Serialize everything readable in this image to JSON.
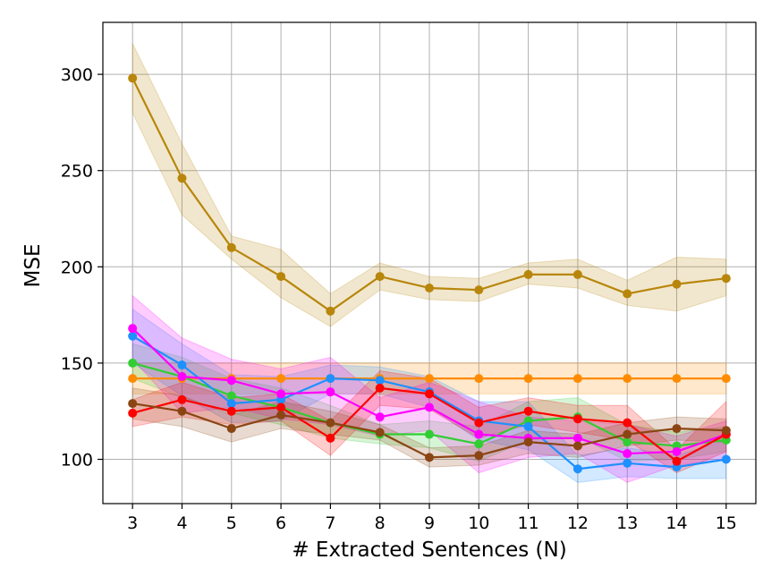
{
  "chart_data": {
    "type": "line",
    "title": "",
    "xlabel": "# Extracted Sentences (N)",
    "ylabel": "MSE",
    "x": [
      3,
      4,
      5,
      6,
      7,
      8,
      9,
      10,
      11,
      12,
      13,
      14,
      15
    ],
    "xlim": [
      2.4,
      15.6
    ],
    "ylim": [
      77,
      327
    ],
    "xticks": [
      3,
      4,
      5,
      6,
      7,
      8,
      9,
      10,
      11,
      12,
      13,
      14,
      15
    ],
    "yticks": [
      100,
      150,
      200,
      250,
      300
    ],
    "grid": true,
    "series": [
      {
        "name": "gold",
        "color": "#b8860b",
        "values": [
          298,
          246,
          210,
          195,
          177,
          195,
          189,
          188,
          196,
          196,
          186,
          191,
          194
        ],
        "lower": [
          280,
          227,
          204,
          184,
          169,
          188,
          183,
          182,
          191,
          189,
          180,
          177,
          185
        ],
        "upper": [
          316,
          264,
          216,
          209,
          186,
          202,
          195,
          194,
          202,
          204,
          193,
          205,
          204
        ]
      },
      {
        "name": "orange",
        "color": "#ff8c00",
        "values": [
          142,
          142,
          142,
          142,
          142,
          142,
          142,
          142,
          142,
          142,
          142,
          142,
          142
        ],
        "lower": [
          134,
          134,
          134,
          134,
          134,
          134,
          134,
          134,
          134,
          134,
          134,
          134,
          134
        ],
        "upper": [
          150,
          150,
          150,
          150,
          150,
          150,
          150,
          150,
          150,
          150,
          150,
          150,
          150
        ]
      },
      {
        "name": "green",
        "color": "#32cd32",
        "values": [
          150,
          143,
          133,
          127,
          119,
          113,
          113,
          108,
          120,
          122,
          109,
          107,
          110
        ],
        "lower": [
          142,
          132,
          124,
          118,
          111,
          108,
          106,
          99,
          110,
          112,
          99,
          100,
          104
        ],
        "upper": [
          160,
          153,
          142,
          137,
          128,
          118,
          120,
          117,
          130,
          132,
          118,
          114,
          117
        ]
      },
      {
        "name": "blue",
        "color": "#1e90ff",
        "values": [
          164,
          149,
          129,
          131,
          142,
          141,
          135,
          120,
          117,
          95,
          98,
          96,
          100
        ],
        "lower": [
          150,
          133,
          119,
          120,
          134,
          134,
          127,
          110,
          105,
          88,
          91,
          90,
          90
        ],
        "upper": [
          178,
          160,
          144,
          143,
          149,
          148,
          143,
          130,
          130,
          102,
          106,
          102,
          110
        ]
      },
      {
        "name": "magenta",
        "color": "#ff00ff",
        "values": [
          168,
          143,
          141,
          134,
          135,
          122,
          127,
          113,
          111,
          111,
          103,
          104,
          113
        ],
        "lower": [
          152,
          124,
          127,
          121,
          118,
          112,
          115,
          93,
          101,
          103,
          88,
          97,
          100
        ],
        "upper": [
          185,
          163,
          152,
          147,
          153,
          132,
          140,
          130,
          122,
          120,
          118,
          112,
          120
        ]
      },
      {
        "name": "red",
        "color": "#ff0000",
        "values": [
          124,
          131,
          125,
          127,
          111,
          137,
          134,
          119,
          125,
          121,
          119,
          99,
          113
        ],
        "lower": [
          117,
          122,
          118,
          120,
          102,
          128,
          126,
          111,
          118,
          114,
          110,
          93,
          104
        ],
        "upper": [
          131,
          140,
          132,
          134,
          120,
          146,
          142,
          127,
          132,
          128,
          128,
          105,
          130
        ]
      },
      {
        "name": "brown",
        "color": "#8b4513",
        "values": [
          129,
          125,
          116,
          123,
          119,
          114,
          101,
          102,
          109,
          107,
          113,
          116,
          115
        ],
        "lower": [
          121,
          117,
          109,
          116,
          113,
          110,
          96,
          97,
          103,
          101,
          107,
          110,
          109
        ],
        "upper": [
          137,
          133,
          123,
          130,
          125,
          118,
          106,
          107,
          115,
          113,
          119,
          122,
          121
        ]
      }
    ]
  }
}
